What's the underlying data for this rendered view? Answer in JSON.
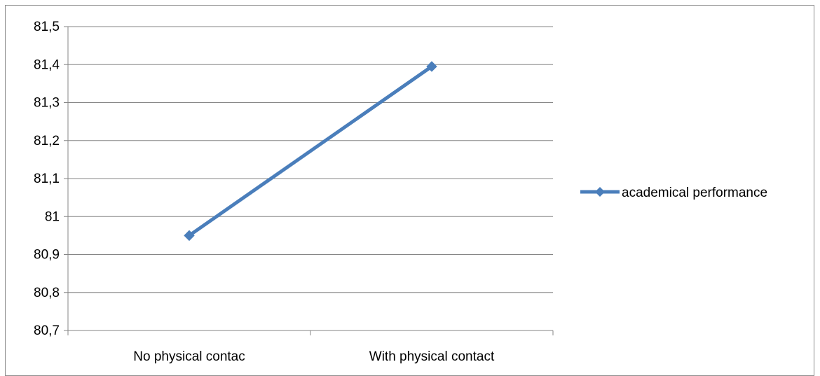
{
  "chart_data": {
    "type": "line",
    "categories": [
      "No physical contac",
      "With physical contact"
    ],
    "series": [
      {
        "name": "academical performance",
        "values": [
          80.95,
          81.395
        ]
      }
    ],
    "y_ticks": [
      "81,5",
      "81,4",
      "81,3",
      "81,2",
      "81,1",
      "81",
      "80,9",
      "80,8",
      "80,7"
    ],
    "ylim": [
      80.7,
      81.5
    ],
    "grid": true,
    "legend_position": "right",
    "series_color": "#4a7ebb"
  }
}
